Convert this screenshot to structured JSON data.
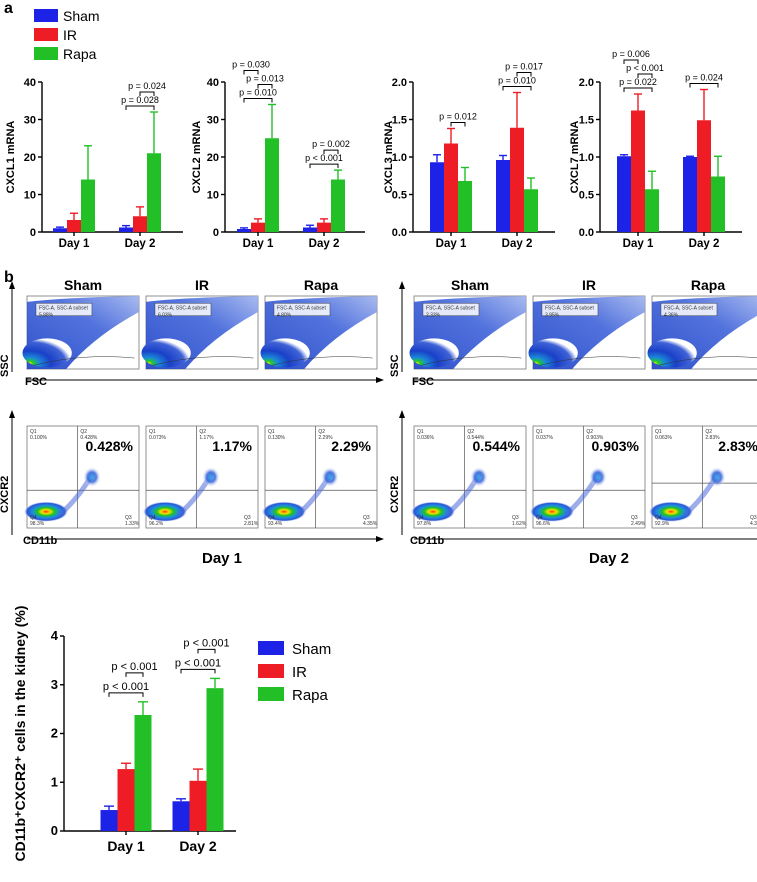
{
  "colors": {
    "sham": "#1c22e6",
    "ir": "#ee1c24",
    "rapa": "#22c026"
  },
  "legend_a": {
    "items": [
      "Sham",
      "IR",
      "Rapa"
    ]
  },
  "panel_labels": {
    "a": "a",
    "b": "b"
  },
  "chart_data": [
    {
      "type": "bar",
      "title": "",
      "ylabel": "CXCL1 mRNA",
      "ylim": [
        0,
        40
      ],
      "yticks": [
        "0",
        "10",
        "20",
        "30",
        "40"
      ],
      "categories": [
        "Day 1",
        "Day 2"
      ],
      "series": [
        {
          "name": "Sham",
          "values": [
            1,
            1.2
          ],
          "errors": [
            0.3,
            0.5
          ]
        },
        {
          "name": "IR",
          "values": [
            3.2,
            4.2
          ],
          "errors": [
            1.8,
            2.5
          ]
        },
        {
          "name": "Rapa",
          "values": [
            14,
            21
          ],
          "errors": [
            9,
            11
          ]
        }
      ],
      "comparisons": [
        {
          "label": "p = 0.028",
          "group": 1,
          "from": 0,
          "to": 2
        },
        {
          "label": "p = 0.024",
          "group": 1,
          "from": 1,
          "to": 2
        }
      ]
    },
    {
      "type": "bar",
      "title": "",
      "ylabel": "CXCL2 mRNA",
      "ylim": [
        0,
        40
      ],
      "yticks": [
        "0",
        "10",
        "20",
        "30",
        "40"
      ],
      "categories": [
        "Day 1",
        "Day 2"
      ],
      "series": [
        {
          "name": "Sham",
          "values": [
            0.8,
            1.2
          ],
          "errors": [
            0.3,
            0.6
          ]
        },
        {
          "name": "IR",
          "values": [
            2.5,
            2.5
          ],
          "errors": [
            1,
            1
          ]
        },
        {
          "name": "Rapa",
          "values": [
            25,
            14
          ],
          "errors": [
            9,
            2.5
          ]
        }
      ],
      "comparisons": [
        {
          "label": "p = 0.010",
          "group": 0,
          "from": 0,
          "to": 2
        },
        {
          "label": "p = 0.013",
          "group": 0,
          "from": 1,
          "to": 2
        },
        {
          "label": "p = 0.030",
          "group": 0,
          "from": 0,
          "to": 1
        },
        {
          "label": "p < 0.001",
          "group": 1,
          "from": 0,
          "to": 2
        },
        {
          "label": "p = 0.002",
          "group": 1,
          "from": 1,
          "to": 2
        }
      ]
    },
    {
      "type": "bar",
      "title": "",
      "ylabel": "CXCL3 mRNA",
      "ylim": [
        0,
        2.0
      ],
      "yticks": [
        "0.0",
        "0.5",
        "1.0",
        "1.5",
        "2.0"
      ],
      "categories": [
        "Day 1",
        "Day 2"
      ],
      "series": [
        {
          "name": "Sham",
          "values": [
            0.93,
            0.96
          ],
          "errors": [
            0.1,
            0.06
          ]
        },
        {
          "name": "IR",
          "values": [
            1.18,
            1.39
          ],
          "errors": [
            0.2,
            0.47
          ]
        },
        {
          "name": "Rapa",
          "values": [
            0.68,
            0.57
          ],
          "errors": [
            0.18,
            0.15
          ]
        }
      ],
      "comparisons": [
        {
          "label": "p = 0.012",
          "group": 0,
          "from": 1,
          "to": 2
        },
        {
          "label": "p = 0.010",
          "group": 1,
          "from": 0,
          "to": 2
        },
        {
          "label": "p = 0.017",
          "group": 1,
          "from": 1,
          "to": 2
        }
      ]
    },
    {
      "type": "bar",
      "title": "",
      "ylabel": "CXCL7 mRNA",
      "ylim": [
        0,
        2.0
      ],
      "yticks": [
        "0.0",
        "0.5",
        "1.0",
        "1.5",
        "2.0"
      ],
      "categories": [
        "Day 1",
        "Day 2"
      ],
      "series": [
        {
          "name": "Sham",
          "values": [
            1.01,
            1.0
          ],
          "errors": [
            0.02,
            0.01
          ]
        },
        {
          "name": "IR",
          "values": [
            1.62,
            1.49
          ],
          "errors": [
            0.22,
            0.41
          ]
        },
        {
          "name": "Rapa",
          "values": [
            0.57,
            0.74
          ],
          "errors": [
            0.24,
            0.27
          ]
        }
      ],
      "comparisons": [
        {
          "label": "p = 0.022",
          "group": 0,
          "from": 0,
          "to": 2
        },
        {
          "label": "p < 0.001",
          "group": 0,
          "from": 1,
          "to": 2
        },
        {
          "label": "p = 0.006",
          "group": 0,
          "from": 0,
          "to": 1
        },
        {
          "label": "p = 0.024",
          "group": 1,
          "from": 0,
          "to": 2
        }
      ]
    },
    {
      "type": "bar",
      "title": "",
      "ylabel": "CD11b⁺CXCR2⁺ cells in the kidney (%)",
      "ylim": [
        0,
        4
      ],
      "yticks": [
        "0",
        "1",
        "2",
        "3",
        "4"
      ],
      "categories": [
        "Day 1",
        "Day 2"
      ],
      "series": [
        {
          "name": "Sham",
          "values": [
            0.43,
            0.61
          ],
          "errors": [
            0.08,
            0.05
          ]
        },
        {
          "name": "IR",
          "values": [
            1.27,
            1.03
          ],
          "errors": [
            0.12,
            0.24
          ]
        },
        {
          "name": "Rapa",
          "values": [
            2.38,
            2.93
          ],
          "errors": [
            0.27,
            0.2
          ]
        }
      ],
      "comparisons": [
        {
          "label": "p < 0.001",
          "group": 0,
          "from": 0,
          "to": 2
        },
        {
          "label": "p < 0.001",
          "group": 0,
          "from": 1,
          "to": 2
        },
        {
          "label": "p < 0.001",
          "group": 1,
          "from": 0,
          "to": 2
        },
        {
          "label": "p < 0.001",
          "group": 1,
          "from": 1,
          "to": 2
        }
      ]
    }
  ],
  "flow": {
    "groups": [
      "Sham",
      "IR",
      "Rapa"
    ],
    "axis_ssc": "SSC",
    "axis_fsc": "FSC",
    "axis_cxcr2": "CXCR2",
    "axis_cd11b": "CD11b",
    "gate_label": "FSC-A, SSC-A subset",
    "day1": {
      "label": "Day 1",
      "scatter_pct": [
        "5.88%",
        "6.03%",
        "4.80%"
      ],
      "quadrant_pct": [
        "0.428%",
        "1.17%",
        "2.29%"
      ],
      "q1": [
        "0.100%",
        "0.073%",
        "0.130%"
      ],
      "q2": [
        "0.428%",
        "1.17%",
        "2.29%"
      ],
      "q3": [
        "1.33%",
        "2.81%",
        "4.35%"
      ],
      "q4": [
        "98.3%",
        "96.2%",
        "93.4%"
      ]
    },
    "day2": {
      "label": "Day 2",
      "scatter_pct": [
        "2.33%",
        "3.95%",
        "4.36%"
      ],
      "quadrant_pct": [
        "0.544%",
        "0.903%",
        "2.83%"
      ],
      "q1": [
        "0.036%",
        "0.037%",
        "0.063%"
      ],
      "q2": [
        "0.544%",
        "0.903%",
        "2.83%"
      ],
      "q3": [
        "1.62%",
        "2.49%",
        "4.35%"
      ],
      "q4": [
        "97.8%",
        "96.6%",
        "92.9%"
      ]
    }
  }
}
